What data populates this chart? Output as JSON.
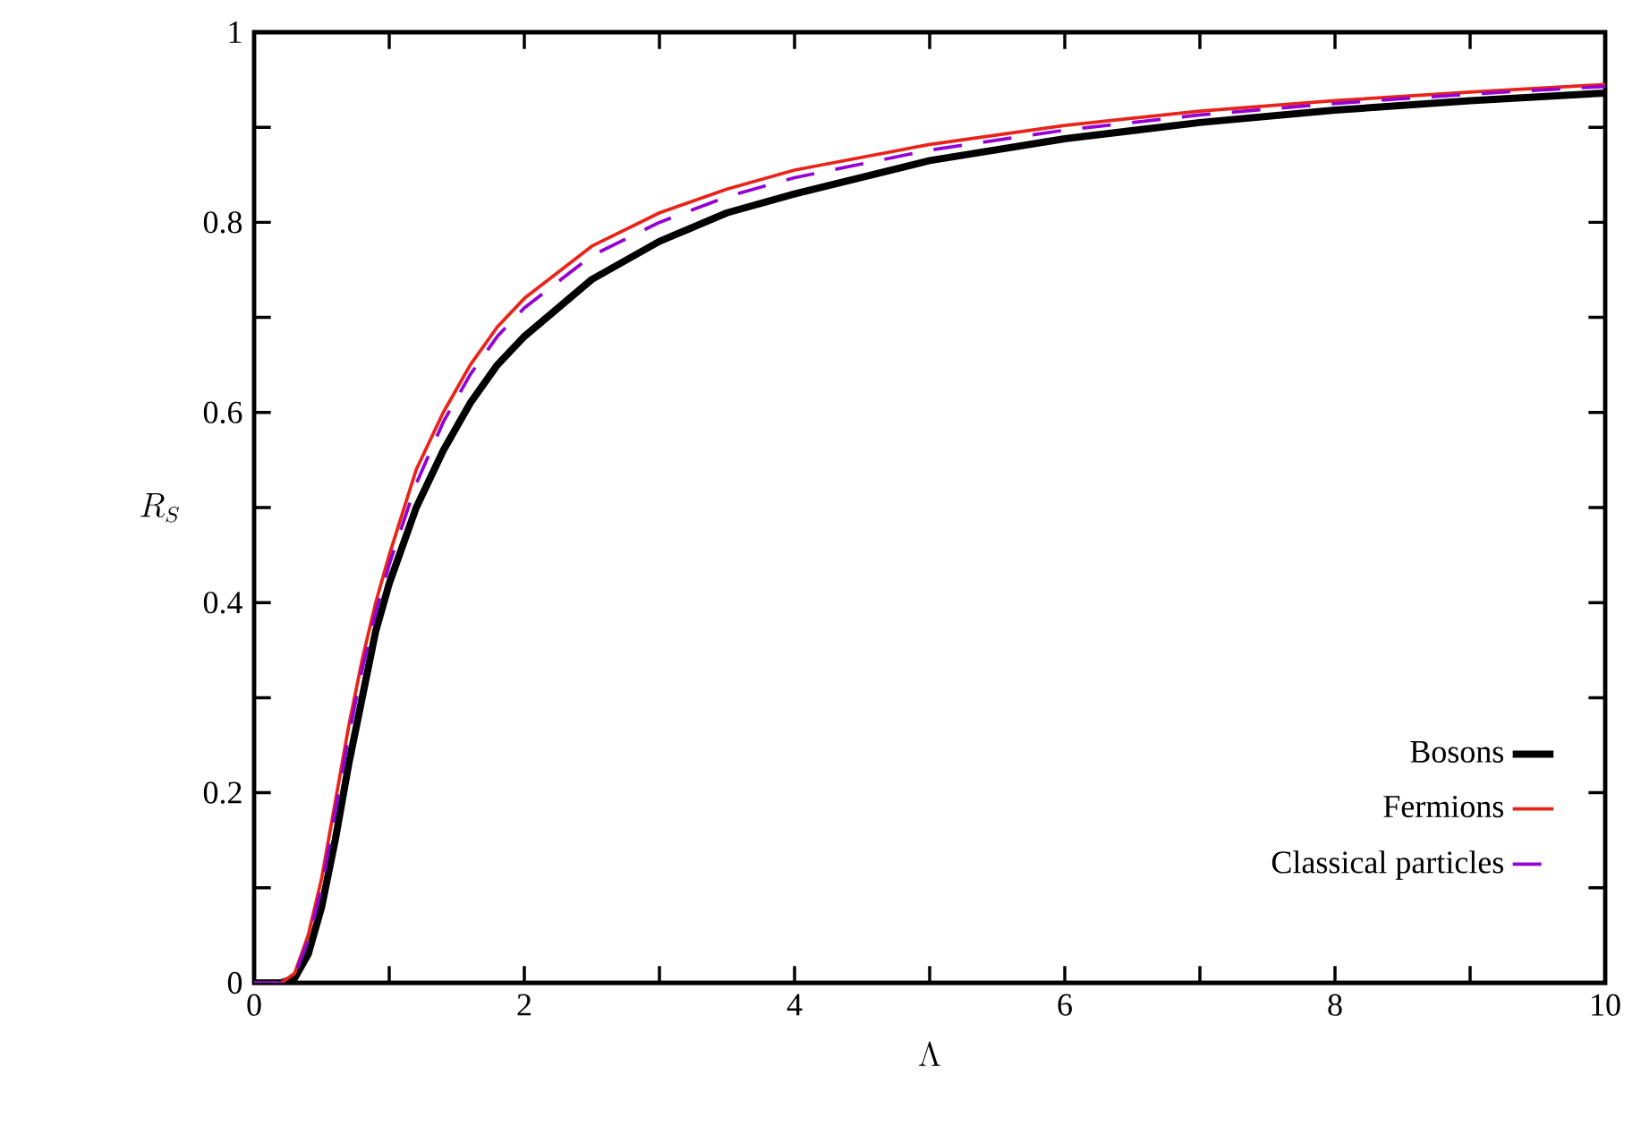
{
  "chart_data": {
    "type": "line",
    "xlabel": "\\Lambda",
    "ylabel": "R_S",
    "xlim": [
      0,
      10
    ],
    "ylim": [
      0,
      1
    ],
    "xticks": [
      0,
      {
        "value": 1,
        "label": null
      },
      2,
      {
        "value": 3,
        "label": null
      },
      4,
      {
        "value": 5,
        "label": null
      },
      6,
      {
        "value": 7,
        "label": null
      },
      8,
      {
        "value": 9,
        "label": null
      },
      10
    ],
    "yticks": [
      0,
      {
        "value": 0.1,
        "label": null
      },
      0.2,
      {
        "value": 0.3,
        "label": null
      },
      0.4,
      {
        "value": 0.5,
        "label": null
      },
      0.6,
      {
        "value": 0.7,
        "label": null
      },
      0.8,
      {
        "value": 0.9,
        "label": null
      },
      1
    ],
    "x": [
      0,
      0.2,
      0.3,
      0.4,
      0.5,
      0.6,
      0.7,
      0.8,
      0.9,
      1.0,
      1.2,
      1.4,
      1.6,
      1.8,
      2.0,
      2.5,
      3,
      3.5,
      4,
      5,
      6,
      7,
      8,
      9,
      10
    ],
    "grid": false,
    "legend": "bottom right",
    "series": [
      {
        "name": "Bosons",
        "color": "#000000",
        "line_style": "solid",
        "values": [
          0,
          0,
          0.005,
          0.03,
          0.08,
          0.15,
          0.23,
          0.3,
          0.37,
          0.42,
          0.5,
          0.56,
          0.61,
          0.65,
          0.68,
          0.74,
          0.78,
          0.81,
          0.83,
          0.865,
          0.888,
          0.905,
          0.918,
          0.928,
          0.936
        ]
      },
      {
        "name": "Fermions",
        "color": "#e8241a",
        "line_style": "solid",
        "values": [
          0,
          0,
          0.01,
          0.05,
          0.11,
          0.19,
          0.27,
          0.34,
          0.4,
          0.45,
          0.54,
          0.6,
          0.65,
          0.69,
          0.72,
          0.775,
          0.81,
          0.835,
          0.855,
          0.882,
          0.902,
          0.917,
          0.928,
          0.937,
          0.945
        ]
      },
      {
        "name": "Classical particles",
        "color": "#9400d3",
        "line_style": "dashed",
        "values": [
          0,
          0,
          0.008,
          0.045,
          0.1,
          0.18,
          0.26,
          0.33,
          0.39,
          0.44,
          0.525,
          0.59,
          0.64,
          0.68,
          0.71,
          0.765,
          0.8,
          0.827,
          0.847,
          0.876,
          0.897,
          0.913,
          0.925,
          0.935,
          0.943
        ]
      }
    ]
  }
}
